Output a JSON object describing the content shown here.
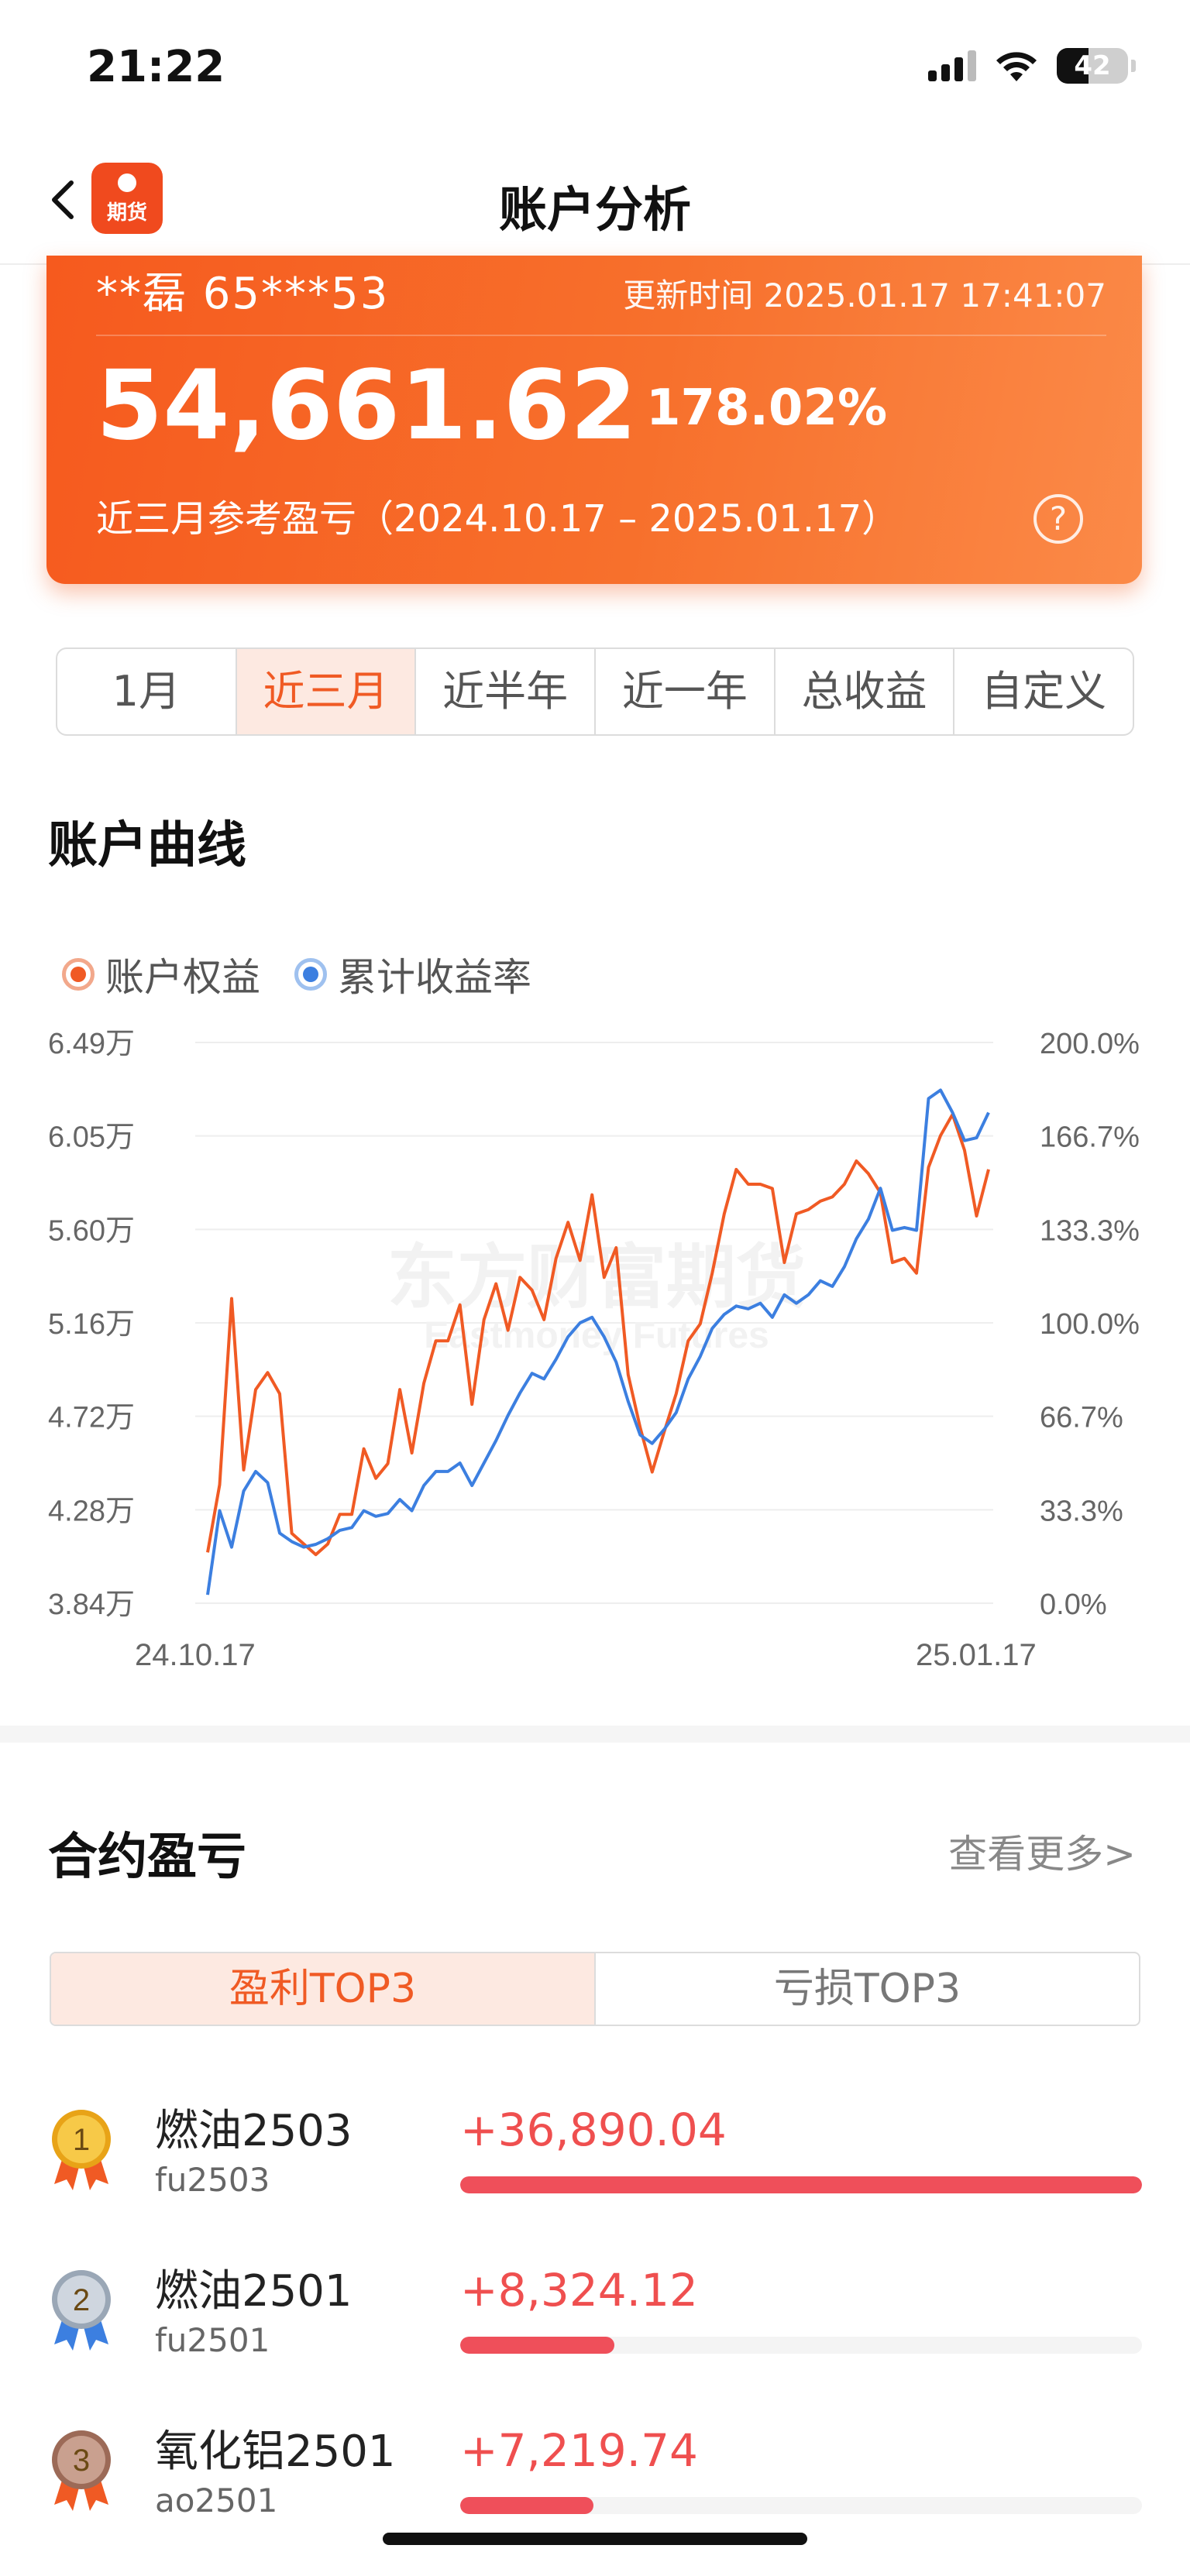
{
  "status_bar": {
    "time": "21:22",
    "battery": "42"
  },
  "nav": {
    "title": "账户分析",
    "logo_text": "期货"
  },
  "summary": {
    "account": "**磊 65***53",
    "update_time": "更新时间 2025.01.17 17:41:07",
    "amount": "54,661.62",
    "percent": "178.02%",
    "period_label": "近三月参考盈亏（2024.10.17 – 2025.01.17）",
    "help": "?"
  },
  "period_tabs": [
    {
      "label": "1月",
      "active": false
    },
    {
      "label": "近三月",
      "active": true
    },
    {
      "label": "近半年",
      "active": false
    },
    {
      "label": "近一年",
      "active": false
    },
    {
      "label": "总收益",
      "active": false
    },
    {
      "label": "自定义",
      "active": false
    }
  ],
  "curve_section": {
    "title": "账户曲线"
  },
  "legend": {
    "equity": "账户权益",
    "return_rate": "累计收益率"
  },
  "colors": {
    "equity": "#f05a24",
    "return_rate": "#3c7fe0",
    "accent": "#f05a24",
    "profit": "#ef4f4f"
  },
  "chart_data": {
    "type": "line",
    "x_start_label": "24.10.17",
    "x_end_label": "25.01.17",
    "left_ticks": [
      "6.49万",
      "6.05万",
      "5.60万",
      "5.16万",
      "4.72万",
      "4.28万",
      "3.84万"
    ],
    "right_ticks": [
      "200.0%",
      "166.7%",
      "133.3%",
      "100.0%",
      "66.7%",
      "33.3%",
      "0.0%"
    ],
    "ylim_left": [
      3.84,
      6.49
    ],
    "ylim_right": [
      0,
      200
    ],
    "watermark": "东方财富期货",
    "watermark_en": "Eastmoney Futures",
    "series": [
      {
        "name": "账户权益",
        "axis": "left",
        "values": [
          4.08,
          4.4,
          5.28,
          4.47,
          4.85,
          4.93,
          4.83,
          4.17,
          4.12,
          4.07,
          4.12,
          4.26,
          4.26,
          4.57,
          4.43,
          4.5,
          4.85,
          4.55,
          4.88,
          5.08,
          5.08,
          5.25,
          4.78,
          5.18,
          5.35,
          5.13,
          5.38,
          5.32,
          5.18,
          5.47,
          5.64,
          5.46,
          5.77,
          5.38,
          5.52,
          4.92,
          4.67,
          4.46,
          4.65,
          4.83,
          5.08,
          5.16,
          5.4,
          5.68,
          5.89,
          5.82,
          5.82,
          5.8,
          5.45,
          5.68,
          5.7,
          5.74,
          5.76,
          5.82,
          5.93,
          5.87,
          5.78,
          5.45,
          5.47,
          5.4,
          5.9,
          6.05,
          6.15,
          5.98,
          5.67,
          5.89
        ]
      },
      {
        "name": "累计收益率",
        "axis": "right",
        "values": [
          3,
          33,
          20,
          40,
          47,
          43,
          25,
          22,
          20,
          21,
          23,
          26,
          27,
          33,
          31,
          32,
          37,
          33,
          42,
          47,
          47,
          50,
          42,
          50,
          58,
          67,
          75,
          82,
          80,
          87,
          95,
          100,
          102,
          95,
          86,
          72,
          60,
          57,
          62,
          68,
          80,
          88,
          98,
          103,
          106,
          105,
          107,
          102,
          110,
          107,
          110,
          115,
          113,
          120,
          130,
          137,
          148,
          133,
          134,
          133,
          180,
          183,
          175,
          165,
          166,
          175
        ]
      }
    ]
  },
  "contract_section": {
    "title": "合约盈亏",
    "view_more": "查看更多>"
  },
  "pl_tabs": [
    {
      "label": "盈利TOP3",
      "active": true
    },
    {
      "label": "亏损TOP3",
      "active": false
    }
  ],
  "top3": [
    {
      "rank": "1",
      "name": "燃油2503",
      "code": "fu2503",
      "amount": "+36,890.04",
      "ratio": 1.0,
      "medal": "gold"
    },
    {
      "rank": "2",
      "name": "燃油2501",
      "code": "fu2501",
      "amount": "+8,324.12",
      "ratio": 0.226,
      "medal": "silver"
    },
    {
      "rank": "3",
      "name": "氧化铝2501",
      "code": "ao2501",
      "amount": "+7,219.74",
      "ratio": 0.196,
      "medal": "bronze"
    }
  ]
}
